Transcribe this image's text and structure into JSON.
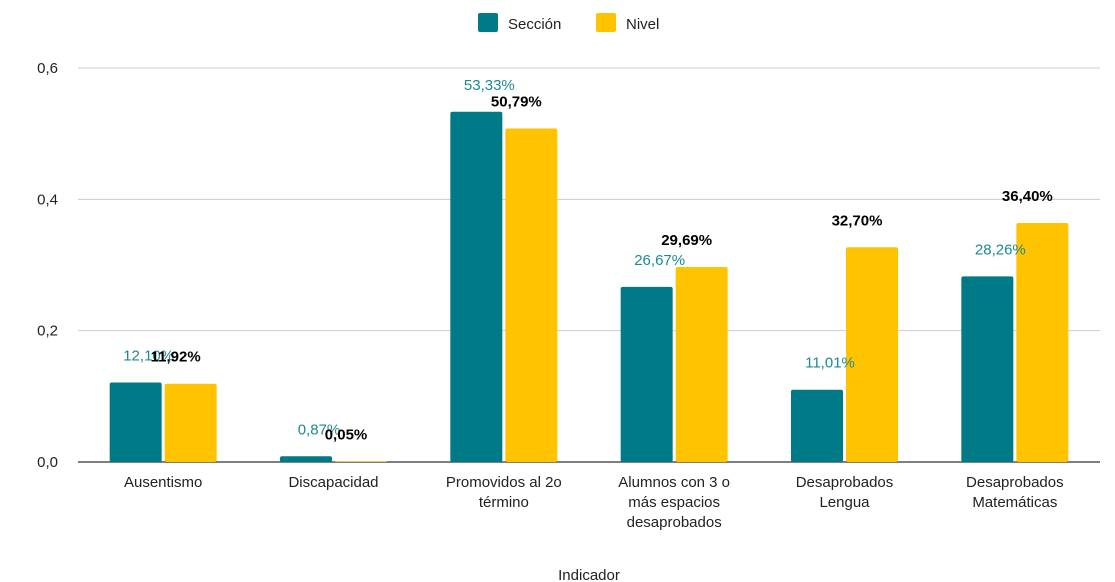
{
  "chart_data": {
    "type": "bar",
    "xlabel": "Indicador",
    "ylabel": "",
    "ylim": [
      0,
      0.6
    ],
    "yticks": [
      {
        "value": 0,
        "label": "0,0"
      },
      {
        "value": 0.2,
        "label": "0,2"
      },
      {
        "value": 0.4,
        "label": "0,4"
      },
      {
        "value": 0.6,
        "label": "0,6"
      }
    ],
    "grid": true,
    "legend_position": "top",
    "categories": [
      [
        "Ausentismo"
      ],
      [
        "Discapacidad"
      ],
      [
        "Promovidos al 2o",
        "término"
      ],
      [
        "Alumnos con 3 o",
        "más espacios",
        "desaprobados"
      ],
      [
        "Desaprobados",
        "Lengua"
      ],
      [
        "Desaprobados",
        "Matemáticas"
      ]
    ],
    "series": [
      {
        "name": "Sección",
        "color": "#007A87",
        "label_color": "#1B8A91",
        "values": [
          0.121,
          0.0087,
          0.5333,
          0.2667,
          0.1101,
          0.2826
        ],
        "labels": [
          "12,10%",
          "0,87%",
          "53,33%",
          "26,67%",
          "11,01%",
          "28,26%"
        ]
      },
      {
        "name": "Nivel",
        "color": "#FFC300",
        "label_color": "#000000",
        "values": [
          0.1192,
          0.0005,
          0.5079,
          0.2969,
          0.327,
          0.364
        ],
        "labels": [
          "11,92%",
          "0,05%",
          "50,79%",
          "29,69%",
          "32,70%",
          "36,40%"
        ]
      }
    ]
  }
}
